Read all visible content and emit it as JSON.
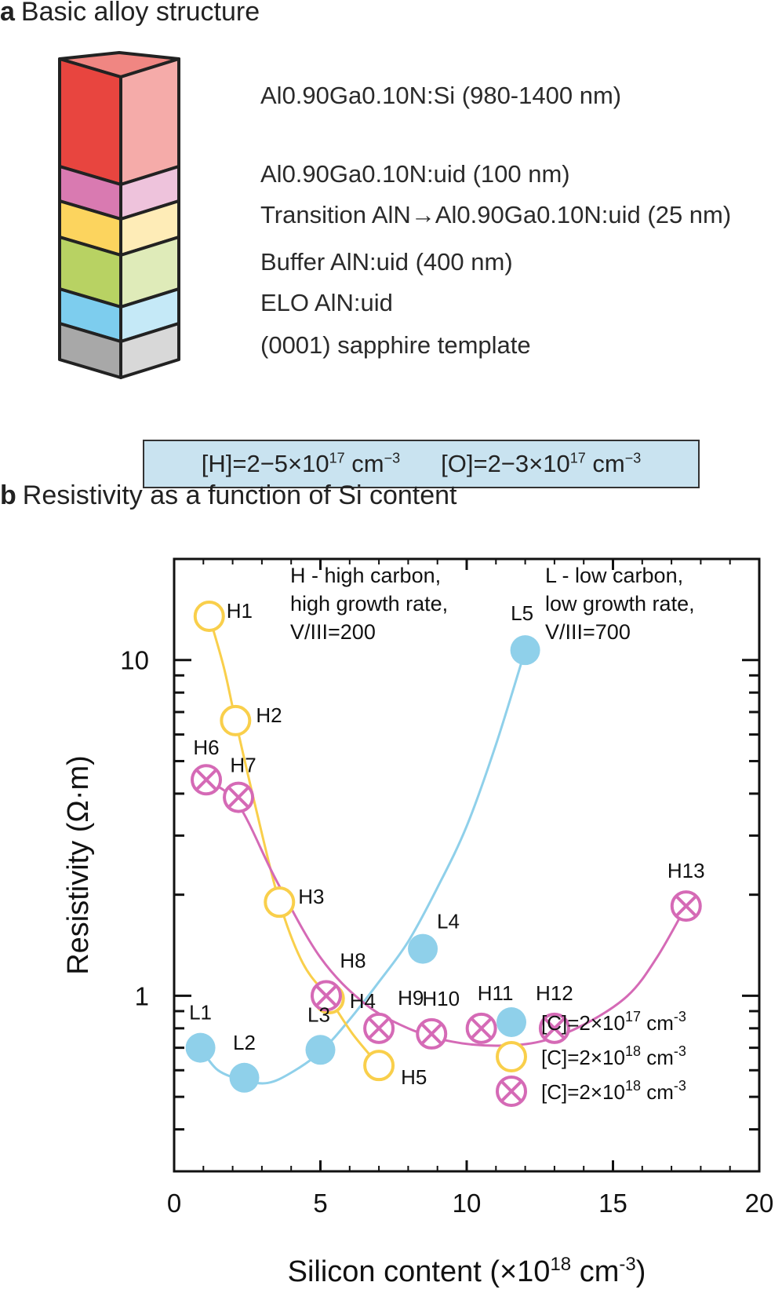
{
  "panel_a": {
    "letter": "a",
    "title": "Basic alloy structure",
    "layers": [
      {
        "label": "Al0.90Ga0.10N:Si (980-1400 nm)",
        "color": "#e8453f"
      },
      {
        "label": "Al0.90Ga0.10N:uid (100 nm)",
        "color": "#d97ab1"
      },
      {
        "label": "Transition AlN→Al0.90Ga0.10N:uid (25 nm)",
        "color": "#fcd45e"
      },
      {
        "label": "Buffer AlN:uid (400 nm)",
        "color": "#b8d263"
      },
      {
        "label": "ELO AlN:uid",
        "color": "#7dcdee"
      },
      {
        "label": "(0001) sapphire template",
        "color": "#a8a8a8"
      }
    ],
    "impurities": {
      "h_text": "[H]=2−5×10",
      "h_exp": "17",
      "h_unit": " cm",
      "h_unit_exp": "−3",
      "o_text": "[O]=2−3×10",
      "o_exp": "17",
      "o_unit": " cm",
      "o_unit_exp": "−3"
    }
  },
  "panel_b": {
    "letter": "b",
    "title": "Resistivity as a function of Si content"
  },
  "chart_data": {
    "type": "scatter",
    "title": "Resistivity as a function of Si content",
    "xlabel": "Silicon content (×10^18 cm^-3)",
    "ylabel": "Resistivity (Ω·m)",
    "xlim": [
      0,
      20
    ],
    "ylim": [
      0.3,
      20
    ],
    "yscale": "log",
    "x_ticks": [
      0,
      5,
      10,
      15,
      20
    ],
    "y_tick_labels": [
      {
        "value": 1,
        "label": "1"
      },
      {
        "value": 10,
        "label": "10"
      }
    ],
    "annotations": [
      {
        "lines": [
          "H - high carbon,",
          "high growth rate,",
          "V/III=200"
        ]
      },
      {
        "lines": [
          "L - low carbon,",
          "low growth rate,",
          "V/III=700"
        ]
      }
    ],
    "series": [
      {
        "name": "[C]=2×10^17 cm^-3",
        "legend_text": "[C]=2×10",
        "legend_exp": "17",
        "legend_unit": " cm",
        "legend_unit_exp": "-3",
        "marker": "filled-circle",
        "color": "#8fd0ea",
        "points": [
          {
            "label": "L1",
            "x": 0.9,
            "y": 0.7
          },
          {
            "label": "L2",
            "x": 2.4,
            "y": 0.57
          },
          {
            "label": "L3",
            "x": 5.0,
            "y": 0.69
          },
          {
            "label": "L4",
            "x": 8.5,
            "y": 1.38
          },
          {
            "label": "L5",
            "x": 12.0,
            "y": 10.7
          }
        ],
        "fit": [
          [
            0.9,
            0.7
          ],
          [
            1.5,
            0.6
          ],
          [
            2.4,
            0.56
          ],
          [
            3.2,
            0.55
          ],
          [
            4.0,
            0.59
          ],
          [
            5.0,
            0.68
          ],
          [
            6.0,
            0.85
          ],
          [
            7.0,
            1.1
          ],
          [
            8.0,
            1.45
          ],
          [
            9.0,
            2.1
          ],
          [
            10.0,
            3.2
          ],
          [
            11.0,
            5.6
          ],
          [
            12.0,
            10.7
          ]
        ]
      },
      {
        "name": "[C]=2×10^18 cm^-3 (open)",
        "legend_text": "[C]=2×10",
        "legend_exp": "18",
        "legend_unit": " cm",
        "legend_unit_exp": "-3",
        "marker": "open-circle",
        "color": "#f9cf4b",
        "points": [
          {
            "label": "H1",
            "x": 1.2,
            "y": 13.5
          },
          {
            "label": "H2",
            "x": 2.1,
            "y": 6.6
          },
          {
            "label": "H3",
            "x": 3.6,
            "y": 1.9
          },
          {
            "label": "H4",
            "x": 5.3,
            "y": 0.98
          },
          {
            "label": "H5",
            "x": 7.0,
            "y": 0.62
          }
        ],
        "fit": [
          [
            1.2,
            13.5
          ],
          [
            1.7,
            9.5
          ],
          [
            2.1,
            6.6
          ],
          [
            2.8,
            3.6
          ],
          [
            3.6,
            1.9
          ],
          [
            4.4,
            1.25
          ],
          [
            5.3,
            0.98
          ],
          [
            6.1,
            0.77
          ],
          [
            7.0,
            0.62
          ]
        ]
      },
      {
        "name": "[C]=2×10^18 cm^-3 (crossed)",
        "legend_text": "[C]=2×10",
        "legend_exp": "18",
        "legend_unit": " cm",
        "legend_unit_exp": "-3",
        "marker": "crossed-circle",
        "color": "#d56ab6",
        "points": [
          {
            "label": "H6",
            "x": 1.1,
            "y": 4.4
          },
          {
            "label": "H7",
            "x": 2.2,
            "y": 3.9
          },
          {
            "label": "H8",
            "x": 5.2,
            "y": 1.0
          },
          {
            "label": "H9",
            "x": 7.0,
            "y": 0.8
          },
          {
            "label": "H10",
            "x": 8.8,
            "y": 0.77
          },
          {
            "label": "H11",
            "x": 10.5,
            "y": 0.8
          },
          {
            "label": "H12",
            "x": 13.0,
            "y": 0.8
          },
          {
            "label": "H13",
            "x": 17.5,
            "y": 1.85
          }
        ],
        "fit": [
          [
            1.1,
            4.4
          ],
          [
            2.2,
            3.7
          ],
          [
            3.5,
            2.2
          ],
          [
            5.0,
            1.3
          ],
          [
            6.5,
            0.95
          ],
          [
            8.0,
            0.8
          ],
          [
            9.5,
            0.73
          ],
          [
            11.0,
            0.71
          ],
          [
            12.5,
            0.73
          ],
          [
            14.0,
            0.82
          ],
          [
            15.5,
            1.0
          ],
          [
            16.5,
            1.3
          ],
          [
            17.5,
            1.85
          ]
        ]
      }
    ]
  }
}
